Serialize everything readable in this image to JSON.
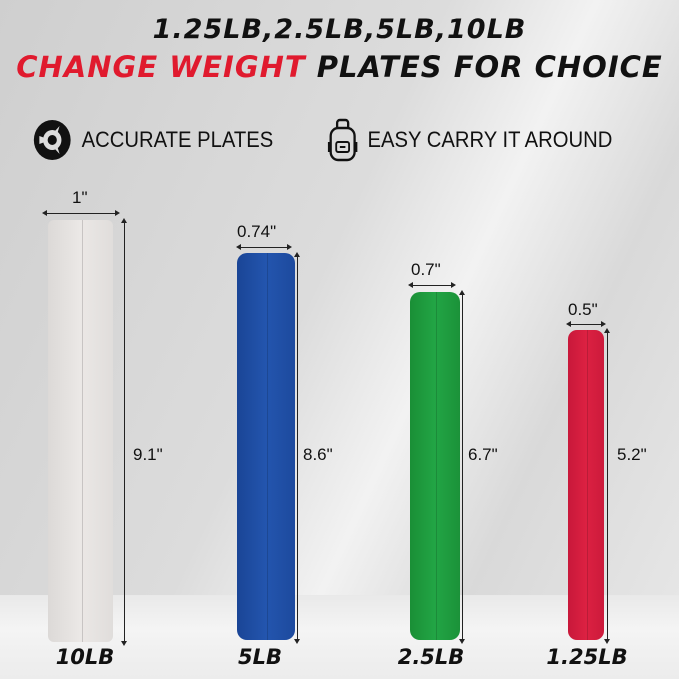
{
  "headline": {
    "line1": "1.25LB,2.5LB,5LB,10LB",
    "line2_red": "CHANGE WEIGHT",
    "line2_rest": " PLATES FOR CHOICE",
    "accent": "#e01a2e"
  },
  "features": [
    {
      "icon": "weight-plate-icon",
      "label": "ACCURATE PLATES"
    },
    {
      "icon": "backpack-icon",
      "label": "EASY CARRY IT AROUND"
    }
  ],
  "plates": [
    {
      "weight": "10LB",
      "thickness": "1\"",
      "diameter": "9.1\"",
      "color": "#e6e3e1"
    },
    {
      "weight": "5LB",
      "thickness": "0.74\"",
      "diameter": "8.6\"",
      "color": "#1f4fa6"
    },
    {
      "weight": "2.5LB",
      "thickness": "0.7\"",
      "diameter": "6.7\"",
      "color": "#1f9a3c"
    },
    {
      "weight": "1.25LB",
      "thickness": "0.5\"",
      "diameter": "5.2\"",
      "color": "#d41c3a"
    }
  ]
}
